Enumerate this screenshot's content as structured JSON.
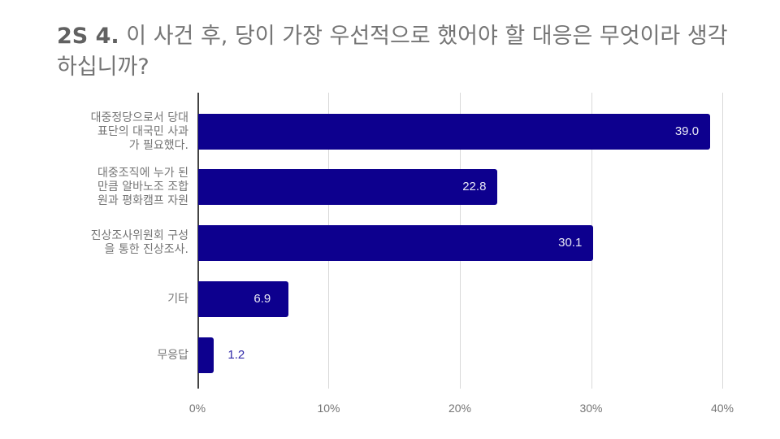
{
  "title": {
    "number": "2S 4.",
    "text": "이 사건 후, 당이 가장 우선적으로 했어야 할 대응은 무엇이라 생각하십니까?"
  },
  "chart_data": {
    "type": "bar",
    "orientation": "horizontal",
    "title": "2S 4. 이 사건 후, 당이 가장 우선적으로 했어야 할 대응은 무엇이라 생각하십니까?",
    "categories": [
      "대중정당으로서 당대표단의 대국민 사과가 필요했다.",
      "대중조직에 누가 된 만큼 알바노조 조합원과 평화캠프 자원",
      "진상조사위원회 구성을 통한 진상조사.",
      "기타",
      "무응답"
    ],
    "category_lines": [
      [
        "대중정당으로서 당대",
        "표단의 대국민 사과",
        "가 필요했다."
      ],
      [
        "대중조직에 누가 된",
        "만큼 알바노조 조합",
        "원과 평화캠프 자원"
      ],
      [
        "진상조사위원회 구성",
        "을 통한 진상조사."
      ],
      [
        "기타"
      ],
      [
        "무응답"
      ]
    ],
    "values": [
      39.0,
      22.8,
      30.1,
      6.9,
      1.2
    ],
    "value_labels": [
      "39.0",
      "22.8",
      "30.1",
      "6.9",
      "1.2"
    ],
    "xlabel": "",
    "ylabel": "",
    "xlim": [
      0,
      40
    ],
    "x_ticks": [
      "0%",
      "10%",
      "20%",
      "30%",
      "40%"
    ],
    "grid": true,
    "legend": "none",
    "bar_color": "#0d008e"
  }
}
